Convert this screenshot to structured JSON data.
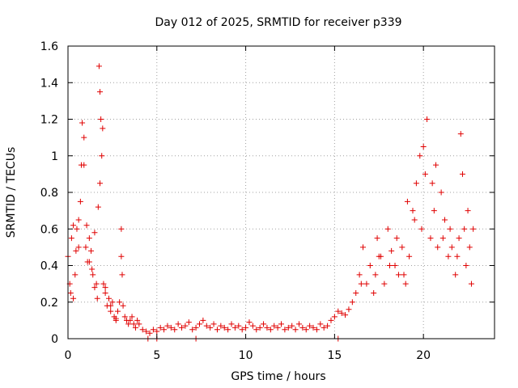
{
  "chart_data": {
    "type": "scatter",
    "title": "Day 012 of 2025, SRMTID for receiver p339",
    "xlabel": "GPS time / hours",
    "ylabel": "SRMTID / TECUs",
    "xlim": [
      0,
      24
    ],
    "ylim": [
      0,
      1.6
    ],
    "xticks": [
      0,
      5,
      10,
      15,
      20
    ],
    "xtick_labels": [
      "0",
      "5",
      "10",
      "15",
      "20"
    ],
    "yticks": [
      0,
      0.2,
      0.4,
      0.6,
      0.8,
      1,
      1.2,
      1.4,
      1.6
    ],
    "ytick_labels": [
      "0",
      "0.2",
      "0.4",
      "0.6",
      "0.8",
      "1",
      "1.2",
      "1.4",
      "1.6"
    ],
    "grid": true,
    "marker": "+",
    "marker_color": "#e00000",
    "series": [
      {
        "name": "p339",
        "x": [
          0.0,
          0.1,
          0.2,
          0.3,
          0.4,
          0.5,
          0.6,
          0.7,
          0.8,
          0.9,
          1.0,
          1.1,
          1.2,
          1.3,
          1.4,
          1.5,
          1.6,
          1.7,
          1.75,
          1.8,
          1.85,
          1.9,
          2.0,
          2.1,
          2.2,
          2.3,
          2.4,
          2.5,
          2.6,
          2.7,
          2.8,
          2.9,
          3.0,
          3.05,
          3.1,
          3.2,
          3.3,
          3.4,
          3.5,
          3.6,
          3.7,
          3.8,
          3.9,
          4.0,
          4.2,
          4.4,
          4.6,
          4.8,
          5.0,
          5.2,
          5.4,
          5.6,
          5.8,
          6.0,
          6.2,
          6.4,
          6.6,
          6.8,
          7.0,
          7.2,
          7.4,
          7.6,
          7.8,
          8.0,
          8.2,
          8.4,
          8.6,
          8.8,
          9.0,
          9.2,
          9.4,
          9.6,
          9.8,
          10.0,
          10.2,
          10.4,
          10.6,
          10.8,
          11.0,
          11.2,
          11.4,
          11.6,
          11.8,
          12.0,
          12.2,
          12.4,
          12.6,
          12.8,
          13.0,
          13.2,
          13.4,
          13.6,
          13.8,
          14.0,
          14.2,
          14.4,
          14.6,
          14.8,
          15.0,
          15.2,
          15.4,
          15.6,
          15.8,
          16.0,
          16.2,
          16.4,
          16.6,
          16.8,
          17.0,
          17.2,
          17.4,
          17.6,
          17.8,
          18.0,
          18.2,
          18.4,
          18.6,
          18.8,
          19.0,
          19.2,
          19.4,
          19.6,
          19.8,
          20.0,
          20.1,
          20.2,
          20.4,
          20.6,
          20.8,
          21.0,
          21.2,
          21.4,
          21.6,
          21.8,
          22.0,
          22.1,
          22.2,
          22.3,
          22.4,
          22.6,
          22.8,
          4.5,
          5.0,
          7.2,
          15.2,
          0.3,
          0.6,
          0.9,
          1.2,
          1.5,
          1.8,
          2.1,
          2.4,
          2.7,
          3.0,
          17.5,
          18.5,
          19.5,
          20.5,
          21.5,
          22.5,
          0.15,
          0.45,
          0.75,
          1.05,
          1.35,
          1.65,
          1.95,
          19.1,
          19.9,
          20.7,
          21.1,
          21.9,
          22.7,
          16.5,
          17.3,
          18.1,
          18.9
        ],
        "y": [
          0.45,
          0.3,
          0.55,
          0.62,
          0.35,
          0.6,
          0.5,
          0.75,
          1.18,
          0.95,
          0.5,
          0.42,
          0.55,
          0.48,
          0.35,
          0.28,
          0.3,
          0.72,
          1.49,
          1.35,
          1.2,
          1.0,
          0.3,
          0.25,
          0.18,
          0.22,
          0.15,
          0.2,
          0.12,
          0.1,
          0.15,
          0.2,
          0.6,
          0.35,
          0.18,
          0.12,
          0.1,
          0.08,
          0.1,
          0.12,
          0.08,
          0.06,
          0.1,
          0.08,
          0.05,
          0.04,
          0.03,
          0.05,
          0.04,
          0.06,
          0.05,
          0.07,
          0.06,
          0.05,
          0.08,
          0.06,
          0.07,
          0.09,
          0.05,
          0.06,
          0.08,
          0.1,
          0.07,
          0.06,
          0.08,
          0.05,
          0.07,
          0.06,
          0.05,
          0.08,
          0.06,
          0.07,
          0.05,
          0.06,
          0.09,
          0.07,
          0.05,
          0.06,
          0.08,
          0.06,
          0.05,
          0.07,
          0.06,
          0.08,
          0.05,
          0.06,
          0.07,
          0.05,
          0.08,
          0.06,
          0.05,
          0.07,
          0.06,
          0.05,
          0.08,
          0.06,
          0.07,
          0.1,
          0.12,
          0.15,
          0.14,
          0.13,
          0.16,
          0.2,
          0.25,
          0.35,
          0.5,
          0.3,
          0.4,
          0.25,
          0.55,
          0.45,
          0.3,
          0.6,
          0.48,
          0.4,
          0.35,
          0.5,
          0.3,
          0.45,
          0.7,
          0.85,
          1.0,
          1.05,
          0.9,
          1.2,
          0.55,
          0.7,
          0.5,
          0.8,
          0.65,
          0.45,
          0.5,
          0.35,
          0.55,
          1.12,
          0.9,
          0.6,
          0.4,
          0.5,
          0.6,
          0.0,
          0.0,
          0.0,
          0.0,
          0.22,
          0.65,
          1.1,
          0.42,
          0.58,
          0.85,
          0.28,
          0.18,
          0.11,
          0.45,
          0.45,
          0.55,
          0.65,
          0.85,
          0.6,
          0.7,
          0.25,
          0.48,
          0.95,
          0.62,
          0.38,
          0.22,
          1.15,
          0.75,
          0.6,
          0.95,
          0.55,
          0.45,
          0.3,
          0.3,
          0.35,
          0.4,
          0.35
        ]
      }
    ]
  }
}
